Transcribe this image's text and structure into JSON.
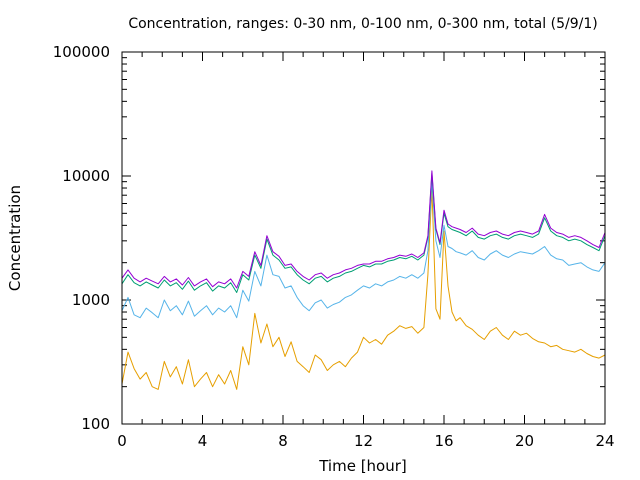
{
  "chart_data": {
    "type": "line",
    "title": "Concentration, ranges: 0-30 nm, 0-100 nm, 0-300 nm, total (5/9/1)",
    "xlabel": "Time [hour]",
    "ylabel": "Concentration",
    "xlim": [
      0,
      24
    ],
    "ylim": [
      100,
      100000
    ],
    "yscale": "log",
    "xticks": [
      0,
      4,
      8,
      12,
      16,
      20,
      24
    ],
    "yticks": [
      100,
      1000,
      10000,
      100000
    ],
    "xtick_labels": [
      "0",
      "4",
      "8",
      "12",
      "16",
      "20",
      "24"
    ],
    "ytick_labels": [
      "100",
      "1000",
      "10000",
      "100000"
    ],
    "grid": false,
    "legend": "none",
    "series": [
      {
        "color": "#e69f00",
        "x": [
          0,
          0.3,
          0.6,
          0.9,
          1.2,
          1.5,
          1.8,
          2.1,
          2.4,
          2.7,
          3.0,
          3.3,
          3.6,
          3.9,
          4.2,
          4.5,
          4.8,
          5.1,
          5.4,
          5.7,
          6.0,
          6.3,
          6.6,
          6.9,
          7.2,
          7.5,
          7.8,
          8.1,
          8.4,
          8.7,
          9.0,
          9.3,
          9.6,
          9.9,
          10.2,
          10.5,
          10.8,
          11.1,
          11.4,
          11.7,
          12.0,
          12.3,
          12.6,
          12.9,
          13.2,
          13.5,
          13.8,
          14.1,
          14.4,
          14.7,
          15.0,
          15.2,
          15.4,
          15.6,
          15.8,
          16.0,
          16.2,
          16.4,
          16.6,
          16.8,
          17.1,
          17.4,
          17.7,
          18.0,
          18.3,
          18.6,
          18.9,
          19.2,
          19.5,
          19.8,
          20.1,
          20.4,
          20.7,
          21.0,
          21.3,
          21.6,
          21.9,
          22.2,
          22.5,
          22.8,
          23.1,
          23.4,
          23.7,
          24.0
        ],
        "y": [
          210,
          380,
          280,
          230,
          260,
          200,
          190,
          320,
          240,
          290,
          210,
          330,
          200,
          230,
          260,
          200,
          250,
          210,
          270,
          190,
          420,
          300,
          780,
          450,
          640,
          420,
          500,
          350,
          460,
          320,
          290,
          260,
          360,
          330,
          270,
          300,
          320,
          290,
          340,
          380,
          500,
          450,
          480,
          440,
          520,
          560,
          620,
          590,
          610,
          540,
          600,
          1600,
          8000,
          850,
          700,
          3600,
          1300,
          800,
          680,
          720,
          620,
          580,
          520,
          480,
          560,
          600,
          520,
          480,
          560,
          520,
          540,
          490,
          460,
          450,
          420,
          430,
          400,
          390,
          380,
          400,
          370,
          350,
          340,
          360
        ]
      },
      {
        "color": "#56b4e9",
        "x": [
          0,
          0.3,
          0.6,
          0.9,
          1.2,
          1.5,
          1.8,
          2.1,
          2.4,
          2.7,
          3.0,
          3.3,
          3.6,
          3.9,
          4.2,
          4.5,
          4.8,
          5.1,
          5.4,
          5.7,
          6.0,
          6.3,
          6.6,
          6.9,
          7.2,
          7.5,
          7.8,
          8.1,
          8.4,
          8.7,
          9.0,
          9.3,
          9.6,
          9.9,
          10.2,
          10.5,
          10.8,
          11.1,
          11.4,
          11.7,
          12.0,
          12.3,
          12.6,
          12.9,
          13.2,
          13.5,
          13.8,
          14.1,
          14.4,
          14.7,
          15.0,
          15.2,
          15.4,
          15.6,
          15.8,
          16.0,
          16.2,
          16.4,
          16.6,
          16.8,
          17.1,
          17.4,
          17.7,
          18.0,
          18.3,
          18.6,
          18.9,
          19.2,
          19.5,
          19.8,
          20.1,
          20.4,
          20.7,
          21.0,
          21.3,
          21.6,
          21.9,
          22.2,
          22.5,
          22.8,
          23.1,
          23.4,
          23.7,
          24.0
        ],
        "y": [
          820,
          1050,
          760,
          720,
          860,
          790,
          720,
          1000,
          820,
          900,
          760,
          980,
          740,
          820,
          900,
          760,
          860,
          800,
          900,
          720,
          1200,
          980,
          1700,
          1300,
          2300,
          1600,
          1550,
          1250,
          1300,
          1050,
          900,
          820,
          950,
          1000,
          860,
          920,
          960,
          1050,
          1100,
          1200,
          1300,
          1250,
          1350,
          1300,
          1400,
          1450,
          1550,
          1500,
          1600,
          1500,
          1650,
          2500,
          9000,
          3000,
          2200,
          4000,
          2700,
          2600,
          2450,
          2400,
          2300,
          2500,
          2200,
          2100,
          2350,
          2500,
          2300,
          2200,
          2350,
          2450,
          2400,
          2350,
          2500,
          2700,
          2300,
          2150,
          2100,
          1900,
          1950,
          2000,
          1850,
          1750,
          1700,
          2000
        ]
      },
      {
        "color": "#009e73",
        "x": [
          0,
          0.3,
          0.6,
          0.9,
          1.2,
          1.5,
          1.8,
          2.1,
          2.4,
          2.7,
          3.0,
          3.3,
          3.6,
          3.9,
          4.2,
          4.5,
          4.8,
          5.1,
          5.4,
          5.7,
          6.0,
          6.3,
          6.6,
          6.9,
          7.2,
          7.5,
          7.8,
          8.1,
          8.4,
          8.7,
          9.0,
          9.3,
          9.6,
          9.9,
          10.2,
          10.5,
          10.8,
          11.1,
          11.4,
          11.7,
          12.0,
          12.3,
          12.6,
          12.9,
          13.2,
          13.5,
          13.8,
          14.1,
          14.4,
          14.7,
          15.0,
          15.2,
          15.4,
          15.6,
          15.8,
          16.0,
          16.2,
          16.4,
          16.6,
          16.8,
          17.1,
          17.4,
          17.7,
          18.0,
          18.3,
          18.6,
          18.9,
          19.2,
          19.5,
          19.8,
          20.1,
          20.4,
          20.7,
          21.0,
          21.3,
          21.6,
          21.9,
          22.2,
          22.5,
          22.8,
          23.1,
          23.4,
          23.7,
          24.0
        ],
        "y": [
          1350,
          1600,
          1380,
          1300,
          1400,
          1320,
          1250,
          1450,
          1300,
          1380,
          1220,
          1420,
          1200,
          1300,
          1380,
          1180,
          1300,
          1250,
          1380,
          1150,
          1600,
          1450,
          2300,
          1800,
          3100,
          2300,
          2100,
          1800,
          1850,
          1600,
          1450,
          1350,
          1500,
          1550,
          1400,
          1500,
          1550,
          1650,
          1700,
          1800,
          1900,
          1850,
          1950,
          1950,
          2050,
          2100,
          2200,
          2150,
          2250,
          2100,
          2300,
          3200,
          10500,
          3700,
          2800,
          5000,
          3900,
          3700,
          3600,
          3500,
          3300,
          3600,
          3200,
          3100,
          3300,
          3400,
          3200,
          3100,
          3300,
          3400,
          3300,
          3200,
          3400,
          4600,
          3600,
          3300,
          3200,
          3000,
          3100,
          3000,
          2800,
          2650,
          2500,
          3300
        ]
      },
      {
        "color": "#9400d3",
        "x": [
          0,
          0.3,
          0.6,
          0.9,
          1.2,
          1.5,
          1.8,
          2.1,
          2.4,
          2.7,
          3.0,
          3.3,
          3.6,
          3.9,
          4.2,
          4.5,
          4.8,
          5.1,
          5.4,
          5.7,
          6.0,
          6.3,
          6.6,
          6.9,
          7.2,
          7.5,
          7.8,
          8.1,
          8.4,
          8.7,
          9.0,
          9.3,
          9.6,
          9.9,
          10.2,
          10.5,
          10.8,
          11.1,
          11.4,
          11.7,
          12.0,
          12.3,
          12.6,
          12.9,
          13.2,
          13.5,
          13.8,
          14.1,
          14.4,
          14.7,
          15.0,
          15.2,
          15.4,
          15.6,
          15.8,
          16.0,
          16.2,
          16.4,
          16.6,
          16.8,
          17.1,
          17.4,
          17.7,
          18.0,
          18.3,
          18.6,
          18.9,
          19.2,
          19.5,
          19.8,
          20.1,
          20.4,
          20.7,
          21.0,
          21.3,
          21.6,
          21.9,
          22.2,
          22.5,
          22.8,
          23.1,
          23.4,
          23.7,
          24.0
        ],
        "y": [
          1500,
          1750,
          1500,
          1400,
          1500,
          1420,
          1350,
          1550,
          1400,
          1480,
          1320,
          1520,
          1300,
          1400,
          1480,
          1280,
          1400,
          1350,
          1480,
          1250,
          1700,
          1550,
          2450,
          1900,
          3300,
          2450,
          2250,
          1900,
          1950,
          1700,
          1550,
          1450,
          1600,
          1650,
          1500,
          1600,
          1650,
          1750,
          1800,
          1900,
          1950,
          1950,
          2050,
          2050,
          2150,
          2200,
          2300,
          2250,
          2350,
          2200,
          2400,
          3300,
          11000,
          3800,
          2900,
          5300,
          4100,
          3900,
          3800,
          3700,
          3500,
          3800,
          3400,
          3300,
          3500,
          3600,
          3400,
          3300,
          3500,
          3600,
          3500,
          3400,
          3600,
          4900,
          3800,
          3500,
          3400,
          3200,
          3300,
          3200,
          3000,
          2800,
          2650,
          3500
        ]
      }
    ]
  }
}
